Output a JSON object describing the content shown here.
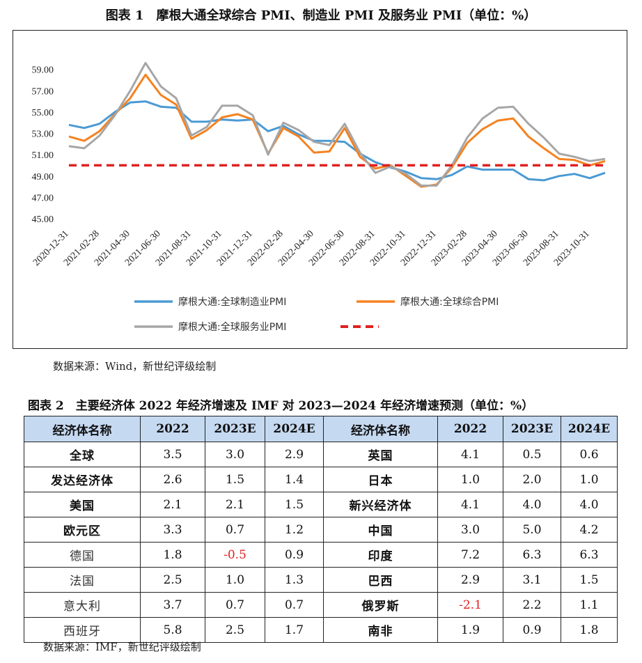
{
  "figure1": {
    "title": "图表 1　摩根大通全球综合 PMI、制造业 PMI 及服务业 PMI（单位：%）",
    "source": "数据来源：Wind，新世纪评级绘制"
  },
  "chart_data": {
    "type": "line",
    "title": "摩根大通全球综合 PMI、制造业 PMI 及服务业 PMI（单位：%）",
    "ylim": [
      45,
      61
    ],
    "yticks": [
      "45.00",
      "47.00",
      "49.00",
      "51.00",
      "53.00",
      "55.00",
      "57.00",
      "59.00"
    ],
    "ytick_values": [
      45,
      47,
      49,
      51,
      53,
      55,
      57,
      59
    ],
    "xtick_labels": [
      "2020-12-31",
      "2021-02-28",
      "2021-04-30",
      "2021-06-30",
      "2021-08-31",
      "2021-10-31",
      "2021-12-31",
      "2022-02-28",
      "2022-04-30",
      "2022-06-30",
      "2022-08-31",
      "2022-10-31",
      "2022-12-31",
      "2023-02-28",
      "2023-04-30",
      "2023-06-30",
      "2023-08-31",
      "2023-10-31"
    ],
    "x_months": [
      "2020-12",
      "2021-01",
      "2021-02",
      "2021-03",
      "2021-04",
      "2021-05",
      "2021-06",
      "2021-07",
      "2021-08",
      "2021-09",
      "2021-10",
      "2021-11",
      "2021-12",
      "2022-01",
      "2022-02",
      "2022-03",
      "2022-04",
      "2022-05",
      "2022-06",
      "2022-07",
      "2022-08",
      "2022-09",
      "2022-10",
      "2022-11",
      "2022-12",
      "2023-01",
      "2023-02",
      "2023-03",
      "2023-04",
      "2023-05",
      "2023-06",
      "2023-07",
      "2023-08",
      "2023-09",
      "2023-10",
      "2023-11"
    ],
    "series": [
      {
        "name": "摩根大通:全球制造业PMI",
        "color": "#4a9ad4",
        "values": [
          53.8,
          53.5,
          53.9,
          55.0,
          55.9,
          56.0,
          55.5,
          55.4,
          54.1,
          54.1,
          54.3,
          54.2,
          54.3,
          53.2,
          53.7,
          52.9,
          52.3,
          52.3,
          52.2,
          51.1,
          50.3,
          49.8,
          49.4,
          48.8,
          48.7,
          49.1,
          49.9,
          49.6,
          49.6,
          49.6,
          48.7,
          48.6,
          49.0,
          49.2,
          48.8,
          49.3
        ]
      },
      {
        "name": "摩根大通:全球综合PMI",
        "color": "#f58220",
        "values": [
          52.7,
          52.3,
          53.2,
          54.8,
          56.3,
          58.5,
          56.6,
          55.7,
          52.5,
          53.3,
          54.5,
          54.8,
          54.3,
          51.1,
          53.5,
          52.7,
          51.2,
          51.3,
          53.5,
          50.8,
          49.7,
          50.0,
          49.0,
          48.0,
          48.2,
          49.8,
          52.1,
          53.4,
          54.2,
          54.4,
          52.7,
          51.6,
          50.6,
          50.5,
          50.0,
          50.4
        ]
      },
      {
        "name": "摩根大通:全球服务业PMI",
        "color": "#a6a6a6",
        "values": [
          51.8,
          51.6,
          52.8,
          54.7,
          57.0,
          59.6,
          57.4,
          56.3,
          52.8,
          53.6,
          55.6,
          55.6,
          54.7,
          51.0,
          54.0,
          53.3,
          52.2,
          51.9,
          53.9,
          51.2,
          49.3,
          49.9,
          49.2,
          48.1,
          48.1,
          50.0,
          52.6,
          54.4,
          55.4,
          55.5,
          53.9,
          52.6,
          51.1,
          50.8,
          50.4,
          50.6
        ]
      },
      {
        "name": "",
        "color": "#e02020",
        "dashed": true,
        "values": [
          50,
          50,
          50,
          50,
          50,
          50,
          50,
          50,
          50,
          50,
          50,
          50,
          50,
          50,
          50,
          50,
          50,
          50,
          50,
          50,
          50,
          50,
          50,
          50,
          50,
          50,
          50,
          50,
          50,
          50,
          50,
          50,
          50,
          50,
          50,
          50
        ]
      }
    ],
    "legend": [
      "摩根大通:全球制造业PMI",
      "摩根大通:全球综合PMI",
      "摩根大通:全球服务业PMI",
      ""
    ]
  },
  "table": {
    "title": "图表 2　主要经济体 2022 年经济增速及 IMF 对 2023—2024 年经济增速预测（单位：%）",
    "headers": [
      "经济体名称",
      "2022",
      "2023E",
      "2024E",
      "经济体名称",
      "2022",
      "2023E",
      "2024E"
    ],
    "rows": [
      [
        "全球",
        "3.5",
        "3.0",
        "2.9",
        "英国",
        "4.1",
        "0.5",
        "0.6"
      ],
      [
        "发达经济体",
        "2.6",
        "1.5",
        "1.4",
        "日本",
        "1.0",
        "2.0",
        "1.0"
      ],
      [
        "美国",
        "2.1",
        "2.1",
        "1.5",
        "新兴经济体",
        "4.1",
        "4.0",
        "4.0"
      ],
      [
        "欧元区",
        "3.3",
        "0.7",
        "1.2",
        "中国",
        "3.0",
        "5.0",
        "4.2"
      ],
      [
        "德国",
        "1.8",
        "-0.5",
        "0.9",
        "印度",
        "7.2",
        "6.3",
        "6.3"
      ],
      [
        "法国",
        "2.5",
        "1.0",
        "1.3",
        "巴西",
        "2.9",
        "3.1",
        "1.5"
      ],
      [
        "意大利",
        "3.7",
        "0.7",
        "0.7",
        "俄罗斯",
        "-2.1",
        "2.2",
        "1.1"
      ],
      [
        "西班牙",
        "5.8",
        "2.5",
        "1.7",
        "南非",
        "1.9",
        "0.9",
        "1.8"
      ]
    ],
    "source": "数据来源：IMF，新世纪评级绘制"
  }
}
